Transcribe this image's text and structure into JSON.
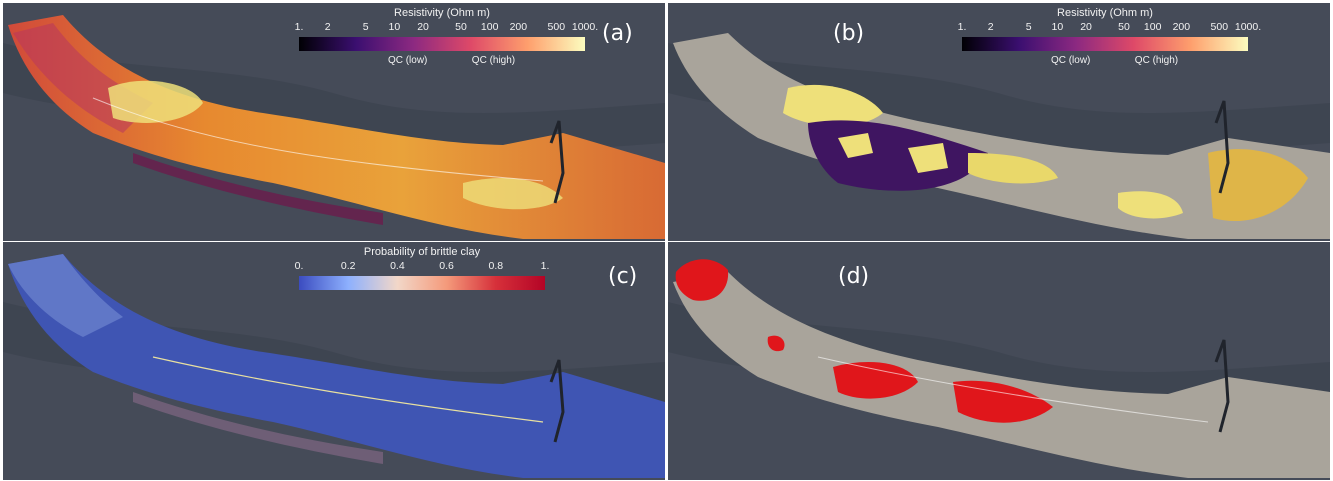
{
  "panels": {
    "a": {
      "label": "(a)"
    },
    "b": {
      "label": "(b)"
    },
    "c": {
      "label": "(c)"
    },
    "d": {
      "label": "(d)"
    }
  },
  "resistivity_colorbar": {
    "title": "Resistivity (Ohm m)",
    "ticks": [
      "1.",
      "2",
      "5",
      "10",
      "20",
      "50",
      "100",
      "200",
      "500",
      "1000."
    ],
    "qc_low": "QC (low)",
    "qc_high": "QC (high)",
    "colors": [
      "#000004",
      "#3b0f70",
      "#8c2981",
      "#de4968",
      "#fe9f6d",
      "#fcfdbf"
    ]
  },
  "probability_colorbar": {
    "title": "Probability of brittle clay",
    "ticks": [
      "0.",
      "0.2",
      "0.4",
      "0.6",
      "0.8",
      "1."
    ],
    "colors": [
      "#3b4cc0",
      "#8db0fe",
      "#f2d7c8",
      "#f49a7b",
      "#d6303a",
      "#b40426"
    ]
  },
  "colors": {
    "terrain": "#454b58",
    "resistivity_hot": "#e8822c",
    "resistivity_qc_high": "#eee07a",
    "resistivity_qc_low": "#3f1561",
    "gray_model": "#a9a49b",
    "probability_low": "#3f55b3",
    "brittle_clay": "#e0161b"
  }
}
